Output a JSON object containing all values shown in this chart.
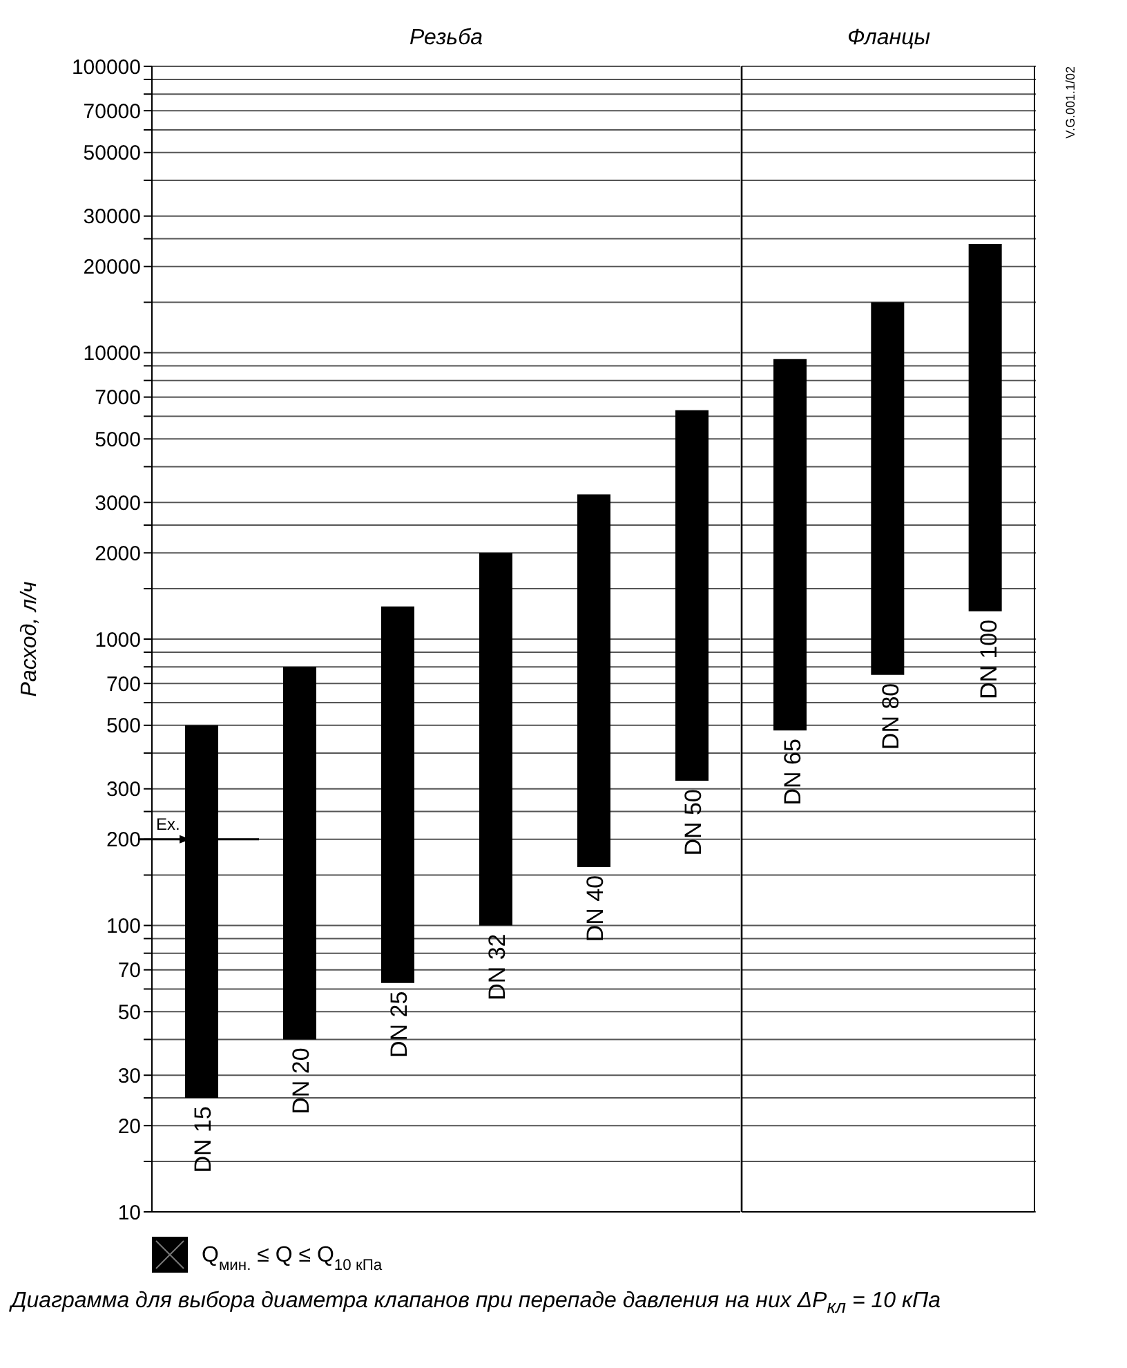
{
  "chart_data": [
    {
      "type": "bar",
      "title": "Резьба",
      "ylabel": "Расход, л/ч",
      "categories": [
        "DN 15",
        "DN 20",
        "DN 25",
        "DN 32",
        "DN 40",
        "DN 50"
      ],
      "series": [
        {
          "name": "Q$_{мин.}$ ≤ Q ≤ Q$_{10 кПа}$",
          "color": "#000000",
          "values": [
            475,
            760,
            1237,
            1900,
            3040,
            5980
          ],
          "base": [
            25,
            40,
            63,
            100,
            160,
            320
          ]
        }
      ],
      "log": "y",
      "ylim": [
        10,
        100000
      ],
      "yticks": [
        10,
        {
          "value": 15,
          "label": null
        },
        20,
        {
          "value": 25,
          "label": null
        },
        30,
        {
          "value": 40,
          "label": null
        },
        50,
        {
          "value": 60,
          "label": null
        },
        70,
        {
          "value": 80,
          "label": null
        },
        {
          "value": 90,
          "label": null
        },
        100,
        {
          "value": 150,
          "label": null
        },
        200,
        {
          "value": 250,
          "label": null
        },
        300,
        {
          "value": 400,
          "label": null
        },
        500,
        {
          "value": 600,
          "label": null
        },
        700,
        {
          "value": 800,
          "label": null
        },
        {
          "value": 900,
          "label": null
        },
        1000,
        {
          "value": 1500,
          "label": null
        },
        2000,
        {
          "value": 2500,
          "label": null
        },
        3000,
        {
          "value": 4000,
          "label": null
        },
        5000,
        {
          "value": 6000,
          "label": null
        },
        7000,
        {
          "value": 8000,
          "label": null
        },
        {
          "value": 9000,
          "label": null
        },
        10000,
        {
          "value": 15000,
          "label": null
        },
        20000,
        {
          "value": 25000,
          "label": null
        },
        30000,
        {
          "value": 40000,
          "label": null
        },
        50000,
        {
          "value": 60000,
          "label": null
        },
        70000,
        {
          "value": 80000,
          "label": null
        },
        {
          "value": 90000,
          "label": null
        },
        100000
      ],
      "grid": "y",
      "legend": "bottom left",
      "annotations": [
        "Ex.",
        "Диаграмма для выбора диаметра клапанов при перепаде давления на них ΔP$_{кл}$ = 10 кПа"
      ]
    },
    {
      "type": "bar",
      "title": "Фланцы",
      "categories": [
        "DN 65",
        "DN 80",
        "DN 100"
      ],
      "series": [
        {
          "color": "#000000",
          "values": [
            9020,
            14250,
            22750
          ],
          "base": [
            480,
            750,
            1250
          ]
        }
      ],
      "log": "y",
      "ylim": [
        10,
        100000
      ],
      "yticks": [
        10,
        {
          "value": 15,
          "label": null
        },
        20,
        {
          "value": 25,
          "label": null
        },
        30,
        {
          "value": 40,
          "label": null
        },
        50,
        {
          "value": 60,
          "label": null
        },
        70,
        {
          "value": 80,
          "label": null
        },
        {
          "value": 90,
          "label": null
        },
        100,
        {
          "value": 150,
          "label": null
        },
        200,
        {
          "value": 250,
          "label": null
        },
        300,
        {
          "value": 400,
          "label": null
        },
        500,
        {
          "value": 600,
          "label": null
        },
        700,
        {
          "value": 800,
          "label": null
        },
        {
          "value": 900,
          "label": null
        },
        1000,
        {
          "value": 1500,
          "label": null
        },
        2000,
        {
          "value": 2500,
          "label": null
        },
        3000,
        {
          "value": 4000,
          "label": null
        },
        5000,
        {
          "value": 6000,
          "label": null
        },
        7000,
        {
          "value": 8000,
          "label": null
        },
        {
          "value": 9000,
          "label": null
        },
        10000,
        {
          "value": 15000,
          "label": null
        },
        20000,
        {
          "value": 25000,
          "label": null
        },
        30000,
        {
          "value": 40000,
          "label": null
        },
        50000,
        {
          "value": 60000,
          "label": null
        },
        70000,
        {
          "value": 80000,
          "label": null
        },
        {
          "value": 90000,
          "label": null
        },
        100000
      ],
      "grid": "y",
      "tick_labels": "x",
      "annotations": [
        "V.G.001.1/02"
      ]
    }
  ]
}
